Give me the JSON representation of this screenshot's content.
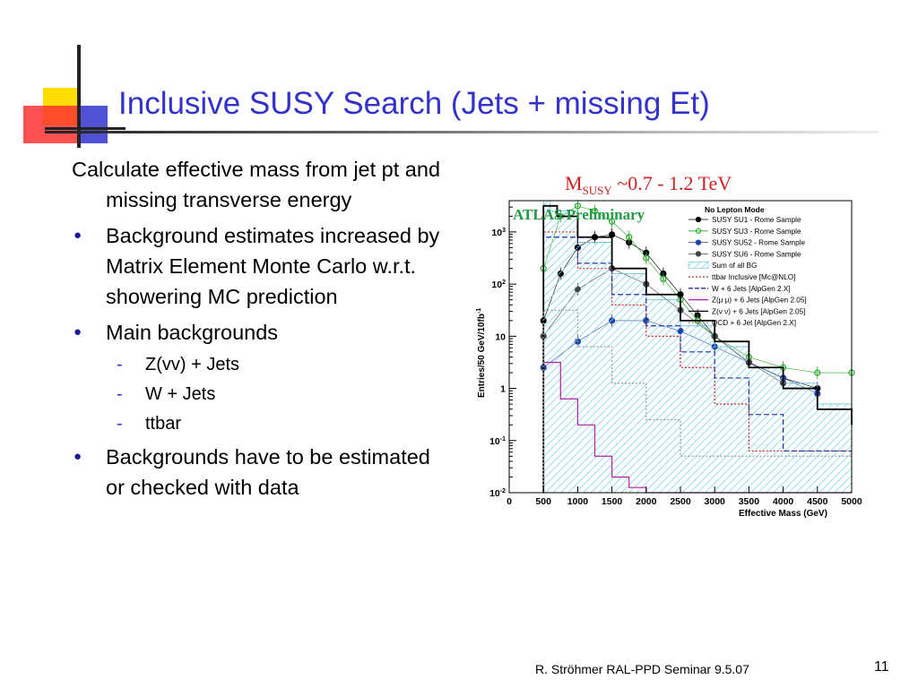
{
  "slide": {
    "title": "Inclusive SUSY Search (Jets + missing Et)",
    "intro": "Calculate effective mass from jet pt and missing transverse energy",
    "bullets": [
      "Background estimates increased by Matrix Element Monte Carlo w.r.t. showering MC prediction",
      "Main backgrounds",
      "Backgrounds have to be estimated or checked with data"
    ],
    "sub_bullets": [
      "Z(vv) + Jets",
      "W + Jets",
      "ttbar"
    ],
    "footer": "R. Ströhmer   RAL-PPD Seminar 9.5.07",
    "page_number": "11",
    "colors": {
      "title": "#3333cc",
      "bullet": "#1a1a99",
      "logo_yellow": "#ffdd00",
      "logo_red": "#ff3333",
      "logo_blue": "#3333cc"
    }
  },
  "chart_data": {
    "type": "line",
    "headline": "M",
    "headline_sub": "SUSY",
    "headline_rest": " ~0.7 - 1.2 TeV",
    "watermark": "ATLAS Preliminary",
    "xlabel": "Effective Mass (GeV)",
    "ylabel": "Entries/50 GeV/10fb",
    "ylabel_exp": "-1",
    "xlim": [
      0,
      5000
    ],
    "x_ticks": [
      "0",
      "500",
      "1000",
      "1500",
      "2000",
      "2500",
      "3000",
      "3500",
      "4000",
      "4500",
      "5000"
    ],
    "y_ticks": [
      {
        "base": "10",
        "exp": "-2"
      },
      {
        "base": "10",
        "exp": "-1"
      },
      {
        "base": "1",
        "exp": ""
      },
      {
        "base": "10",
        "exp": ""
      },
      {
        "base": "10",
        "exp": "2"
      },
      {
        "base": "10",
        "exp": "3"
      }
    ],
    "ylog": true,
    "ylim_exp": [
      -2,
      3.6
    ],
    "legend_title": "No Lepton Mode",
    "legend_position": "top-right",
    "series": [
      {
        "name": "SUSY SU1 - Rome Sample",
        "color": "#000000",
        "style": "markers-black",
        "x": [
          500,
          750,
          1000,
          1250,
          1500,
          1750,
          2000,
          2250,
          2500,
          2750,
          3000,
          3500,
          4000,
          4500
        ],
        "log10": [
          1.3,
          2.2,
          2.7,
          2.9,
          2.95,
          2.8,
          2.6,
          2.2,
          1.8,
          1.4,
          1.0,
          0.5,
          0.2,
          0.0
        ]
      },
      {
        "name": "SUSY SU3 - Rome Sample",
        "color": "#22aa22",
        "style": "markers-green",
        "x": [
          500,
          750,
          1000,
          1250,
          1500,
          1750,
          2000,
          2250,
          2500,
          2750,
          3000,
          3500,
          4000,
          4500,
          5000
        ],
        "log10": [
          2.3,
          3.3,
          3.5,
          3.4,
          3.2,
          2.9,
          2.5,
          2.1,
          1.7,
          1.3,
          1.0,
          0.6,
          0.4,
          0.3,
          0.3
        ]
      },
      {
        "name": "SUSY SU52 - Rome Sample",
        "color": "#2244aa",
        "style": "markers-blue",
        "x": [
          500,
          1000,
          1500,
          2000,
          2500,
          3000,
          3500,
          4000,
          4500
        ],
        "log10": [
          0.4,
          0.9,
          1.3,
          1.3,
          1.1,
          0.8,
          0.5,
          0.2,
          -0.1
        ]
      },
      {
        "name": "SUSY SU6 - Rome Sample",
        "color": "#444444",
        "style": "markers-gray",
        "x": [
          500,
          1000,
          1500,
          2000,
          2500,
          3000,
          3500,
          4000
        ],
        "log10": [
          1.0,
          1.9,
          2.3,
          2.0,
          1.5,
          1.0,
          0.5,
          0.1
        ]
      },
      {
        "name": "Sum of all BG",
        "color": "#88ddee",
        "style": "hatch",
        "x": [
          500,
          600,
          1000,
          1500,
          2000,
          2500,
          3000,
          3500,
          4000,
          4500,
          5000
        ],
        "log10": [
          3.6,
          3.4,
          2.8,
          2.2,
          1.7,
          1.2,
          0.8,
          0.4,
          0.1,
          -0.3,
          -0.6
        ]
      },
      {
        "name": "ttbar Inclusive [Mc@NLO]",
        "color": "#cc2222",
        "style": "dotted",
        "x": [
          500,
          1000,
          1500,
          2000,
          2500,
          3000,
          3500
        ],
        "log10": [
          3.0,
          2.3,
          1.6,
          1.0,
          0.4,
          -0.3,
          -1.2
        ]
      },
      {
        "name": "W + 6 Jets [AlpGen 2.X]",
        "color": "#2233aa",
        "style": "dashed",
        "x": [
          500,
          1000,
          1500,
          2000,
          2500,
          3000,
          3500,
          4000
        ],
        "log10": [
          2.9,
          2.4,
          1.8,
          1.2,
          0.7,
          0.2,
          -0.5,
          -1.2
        ]
      },
      {
        "name": "Z(μ μ) + 6 Jets [AlpGen 2.05]",
        "color": "#aa22aa",
        "style": "solid-purple",
        "x": [
          500,
          750,
          1000,
          1250,
          1500,
          1750,
          2000
        ],
        "log10": [
          0.5,
          -0.2,
          -0.7,
          -1.3,
          -1.7,
          -1.9,
          -2.0
        ]
      },
      {
        "name": "Z(ν ν) + 6 Jets [AlpGen 2.05]",
        "color": "#000000",
        "style": "solid-black",
        "x": [
          500,
          700,
          1000,
          1500,
          2000,
          2500,
          3000,
          3500,
          4000,
          4500,
          5000
        ],
        "log10": [
          3.5,
          3.3,
          2.9,
          2.3,
          1.8,
          1.3,
          0.9,
          0.4,
          0.0,
          -0.4,
          -0.7
        ]
      },
      {
        "name": "QCD + 6 Jet [AlpGen 2.X]",
        "color": "#999999",
        "style": "dotted-gray",
        "x": [
          500,
          1000,
          1500,
          2000,
          2500
        ],
        "log10": [
          1.5,
          0.8,
          0.1,
          -0.6,
          -1.3
        ]
      }
    ]
  }
}
